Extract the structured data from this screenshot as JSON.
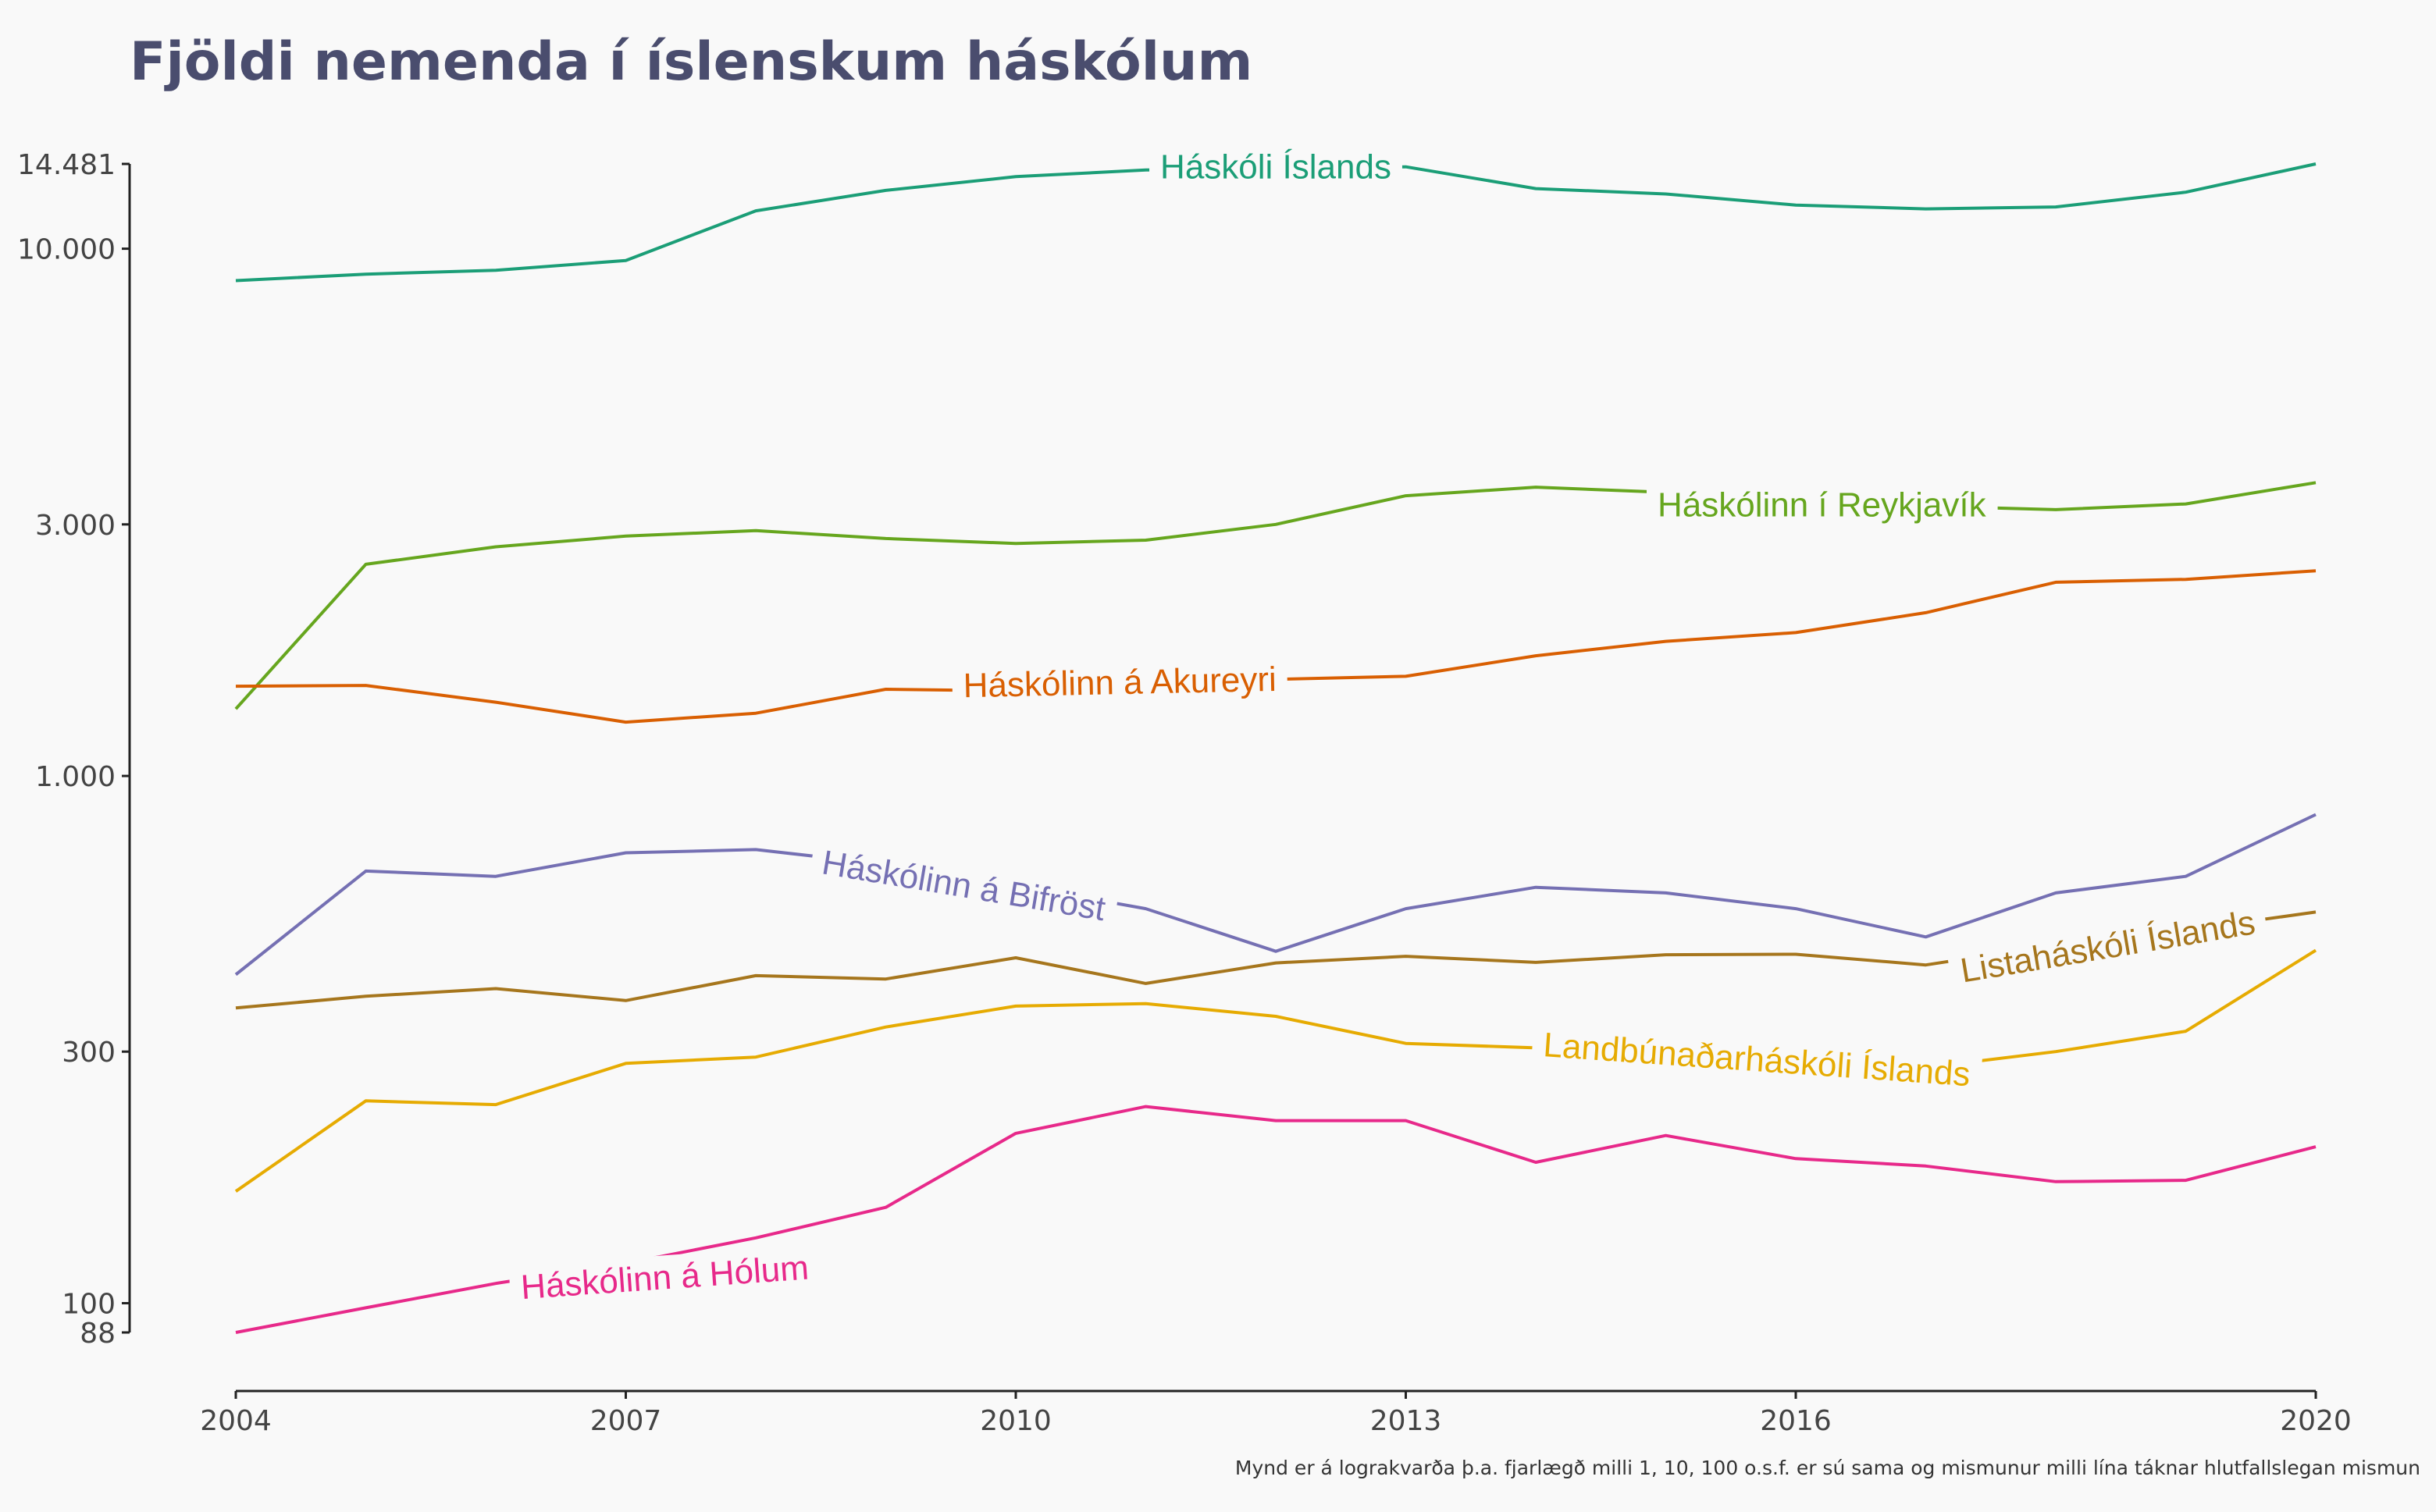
{
  "chart_data": {
    "type": "line",
    "title": "Fjöldi nemenda í íslenskum háskólum",
    "caption": "Mynd er á lograkvarða þ.a. fjarlægð milli 1, 10, 100 o.s.f. er sú sama og mismunur milli lína táknar hlutfallslegan mismun",
    "y_scale": "log",
    "ylim": [
      88,
      14481
    ],
    "y_ticks": [
      {
        "value": 88,
        "label": "88"
      },
      {
        "value": 100,
        "label": "100"
      },
      {
        "value": 300,
        "label": "300"
      },
      {
        "value": 1000,
        "label": "1.000"
      },
      {
        "value": 3000,
        "label": "3.000"
      },
      {
        "value": 10000,
        "label": "10.000"
      },
      {
        "value": 14481,
        "label": "14.481"
      }
    ],
    "xlim": [
      2004,
      2020
    ],
    "x_ticks": [
      {
        "value": 2004,
        "label": "2004"
      },
      {
        "value": 2007,
        "label": "2007"
      },
      {
        "value": 2010,
        "label": "2010"
      },
      {
        "value": 2013,
        "label": "2013"
      },
      {
        "value": 2016,
        "label": "2016"
      },
      {
        "value": 2020,
        "label": "2020"
      }
    ],
    "x": [
      2004,
      2005,
      2006,
      2007,
      2008,
      2009,
      2010,
      2011,
      2012,
      2013,
      2014,
      2015,
      2016,
      2017,
      2018,
      2019,
      2020
    ],
    "legend": "inline labels",
    "series": [
      {
        "name": "Háskóli Íslands",
        "color": "#1b9e77",
        "values": [
          8700,
          8950,
          9100,
          9500,
          11800,
          12900,
          13700,
          14100,
          14200,
          14300,
          13000,
          12700,
          12100,
          11900,
          12000,
          12800,
          14481
        ],
        "label_at": [
          2012.0,
          14300
        ],
        "label_angle": 0
      },
      {
        "name": "Háskólinn í Reykjavík",
        "color": "#66a61e",
        "values": [
          1340,
          2520,
          2720,
          2850,
          2920,
          2820,
          2760,
          2800,
          3000,
          3400,
          3530,
          3450,
          3350,
          3250,
          3200,
          3280,
          3600
        ],
        "label_at": [
          2016.2,
          3270
        ],
        "label_angle": 0
      },
      {
        "name": "Háskólinn á Akureyri",
        "color": "#d95f02",
        "values": [
          1480,
          1485,
          1380,
          1265,
          1315,
          1460,
          1450,
          1480,
          1525,
          1545,
          1690,
          1800,
          1870,
          2040,
          2330,
          2360,
          2450
        ],
        "label_at": [
          2010.8,
          1505
        ],
        "label_angle": -1.2
      },
      {
        "name": "Háskólinn á Bifröst",
        "color": "#7570b3",
        "values": [
          420,
          660,
          645,
          715,
          725,
          680,
          620,
          560,
          465,
          560,
          615,
          600,
          560,
          495,
          600,
          645,
          845
        ],
        "label_at": [
          2009.6,
          620
        ],
        "label_angle": 9.5
      },
      {
        "name": "Listaháskóli Íslands",
        "color": "#a6761d",
        "values": [
          363,
          382,
          395,
          375,
          418,
          412,
          452,
          404,
          442,
          455,
          443,
          458,
          459,
          438,
          478,
          510,
          552
        ],
        "label_at": [
          2018.4,
          475
        ],
        "label_angle": -9.5
      },
      {
        "name": "Landbúnaðarháskóli Íslands",
        "color": "#e6ab02",
        "values": [
          163,
          242,
          238,
          285,
          293,
          334,
          366,
          370,
          350,
          311,
          305,
          292,
          284,
          280,
          300,
          328,
          467
        ],
        "label_at": [
          2015.7,
          290
        ],
        "label_angle": 4
      },
      {
        "name": "Háskólinn á Hólum",
        "color": "#e7298a",
        "values": [
          88,
          98,
          109,
          119,
          133,
          152,
          210,
          236,
          222,
          222,
          185,
          208,
          188,
          182,
          170,
          171,
          198
        ],
        "label_at": [
          2007.3,
          112
        ],
        "label_angle": -4
      }
    ]
  }
}
